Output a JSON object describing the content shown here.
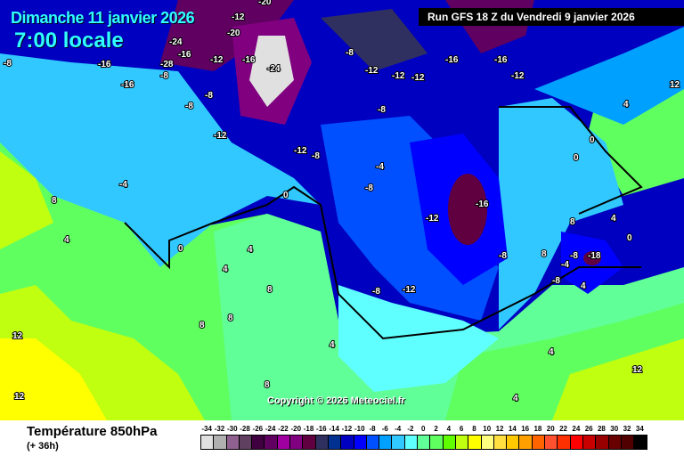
{
  "header": {
    "date": "Dimanche 11 janvier 2026",
    "time": "7:00 locale",
    "run": "Run GFS 18 Z du Vendredi 9 janvier 2026"
  },
  "copyright": "Copyright © 2026 Meteociel.fr",
  "footer": {
    "title": "Température 850hPa",
    "subtitle": "(+ 36h)"
  },
  "legend": {
    "labels": [
      "-34",
      "-32",
      "-30",
      "-28",
      "-26",
      "-24",
      "-22",
      "-20",
      "-18",
      "-16",
      "-14",
      "-12",
      "-10",
      "-8",
      "-6",
      "-4",
      "-2",
      "0",
      "2",
      "4",
      "6",
      "8",
      "10",
      "12",
      "14",
      "16",
      "18",
      "20",
      "22",
      "24",
      "26",
      "28",
      "30",
      "32",
      "34"
    ],
    "colors": [
      "#e0e0e0",
      "#b0b0b0",
      "#906090",
      "#604060",
      "#400040",
      "#600060",
      "#a000a0",
      "#800080",
      "#600040",
      "#303060",
      "#003090",
      "#0000c0",
      "#0000ff",
      "#0050ff",
      "#00a0ff",
      "#30c8ff",
      "#60ffff",
      "#60ff98",
      "#60ff60",
      "#60ff00",
      "#c0ff10",
      "#ffff00",
      "#ffff80",
      "#ffe040",
      "#ffc800",
      "#ffa000",
      "#ff6400",
      "#ff5030",
      "#ff3000",
      "#ff0000",
      "#c80000",
      "#980000",
      "#680000",
      "#500000",
      "#000000"
    ]
  },
  "map_labels": [
    "-12",
    "-16",
    "-28",
    "-20",
    "-24",
    "-20",
    "-16",
    "-8",
    "-8",
    "-16",
    "-12",
    "-8",
    "-16",
    "-24",
    "-12",
    "-8",
    "-12",
    "-12",
    "-16",
    "-16",
    "-12",
    "-8",
    "-8",
    "-12",
    "-12",
    "-8",
    "-4",
    "-8",
    "-16",
    "-12",
    "-8",
    "-12",
    "-8",
    "-4",
    "0",
    "0",
    "0",
    "4",
    "4",
    "8",
    "8",
    "4",
    "8",
    "12",
    "12",
    "8",
    "4",
    "8",
    "-8",
    "-18",
    "-8",
    "4",
    "0",
    "4",
    "-4",
    "8",
    "8",
    "12",
    "4",
    "12",
    "4",
    "0",
    "4"
  ]
}
